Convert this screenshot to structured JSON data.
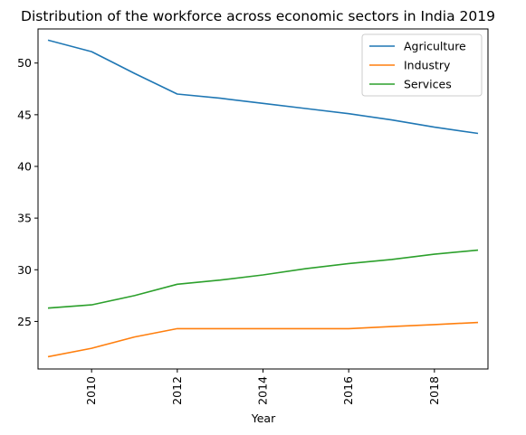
{
  "chart_data": {
    "type": "line",
    "title": "Distribution of the workforce across economic sectors in India 2019",
    "xlabel": "Year",
    "ylabel": "",
    "xlim": [
      2008.75,
      2019.25
    ],
    "ylim": [
      20.4,
      53.3
    ],
    "x_ticks": [
      "2010",
      "2012",
      "2014",
      "2016",
      "2018"
    ],
    "x_tick_values": [
      2010,
      2012,
      2014,
      2016,
      2018
    ],
    "y_ticks": [
      "25",
      "30",
      "35",
      "40",
      "45",
      "50"
    ],
    "y_tick_values": [
      25,
      30,
      35,
      40,
      45,
      50
    ],
    "x_tick_rotation": "vertical",
    "legend_position": "top-right",
    "grid": false,
    "x": [
      2009,
      2010,
      2011,
      2012,
      2013,
      2014,
      2015,
      2016,
      2017,
      2018,
      2019
    ],
    "series": [
      {
        "name": "Agriculture",
        "color": "#1f77b4",
        "values": [
          52.2,
          51.1,
          49.0,
          47.0,
          46.6,
          46.1,
          45.6,
          45.1,
          44.5,
          43.8,
          43.2
        ]
      },
      {
        "name": "Industry",
        "color": "#ff7f0e",
        "values": [
          21.6,
          22.4,
          23.5,
          24.3,
          24.3,
          24.3,
          24.3,
          24.3,
          24.5,
          24.7,
          24.9
        ]
      },
      {
        "name": "Services",
        "color": "#2ca02c",
        "values": [
          26.3,
          26.6,
          27.5,
          28.6,
          29.0,
          29.5,
          30.1,
          30.6,
          31.0,
          31.5,
          31.9
        ]
      }
    ]
  }
}
